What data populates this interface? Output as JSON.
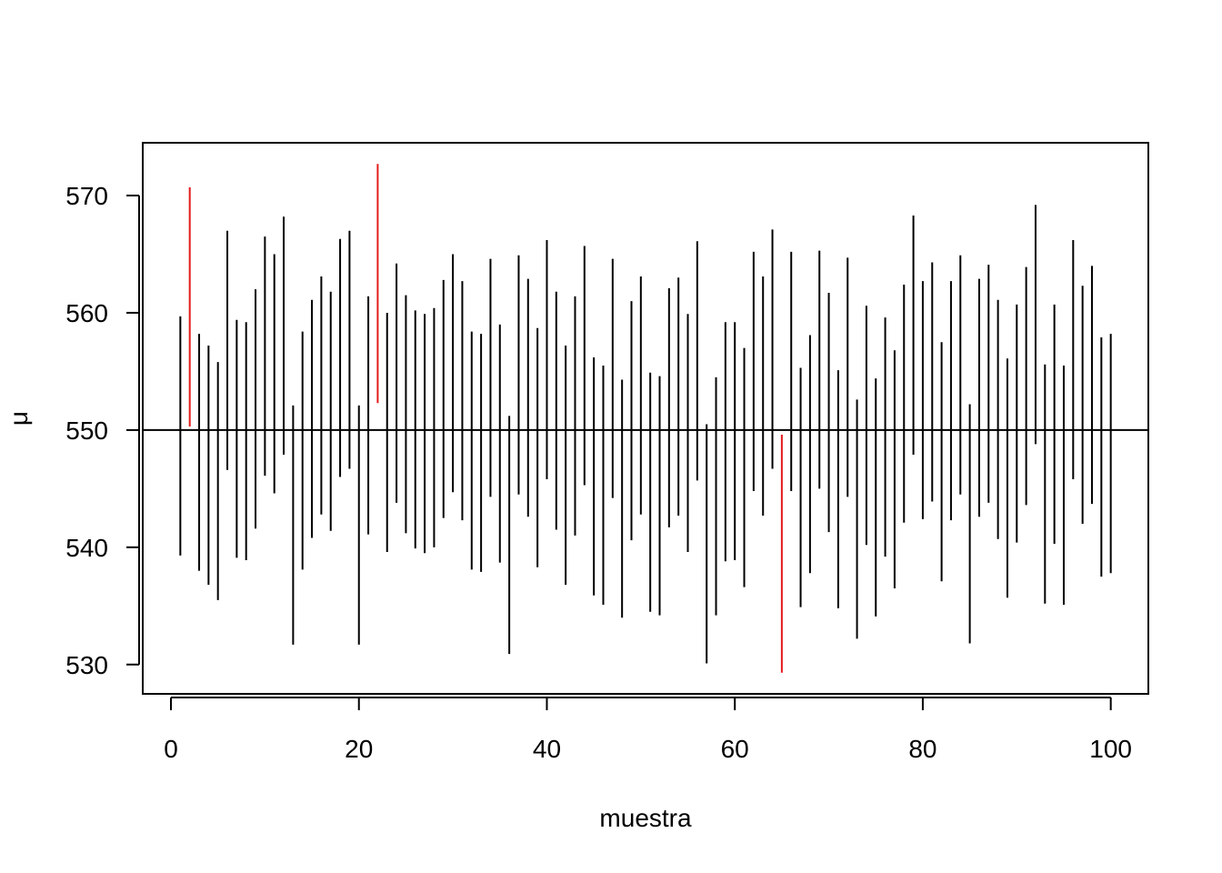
{
  "chart_data": {
    "type": "interval",
    "xlabel": "muestra",
    "ylabel": "μ",
    "xlim": [
      -3.0,
      104.0
    ],
    "ylim": [
      527.5,
      574.5
    ],
    "xticks": [
      "0",
      "20",
      "40",
      "60",
      "80",
      "100"
    ],
    "yticks": [
      "530",
      "540",
      "550",
      "560",
      "570"
    ],
    "reference_line": 550,
    "colors": {
      "covers": "#000000",
      "misses": "#e41a1c",
      "axes": "#000000"
    },
    "grid": false,
    "legend": "none",
    "intervals": [
      [
        1,
        539.3,
        559.7
      ],
      [
        2,
        550.3,
        570.7
      ],
      [
        3,
        538.0,
        558.2
      ],
      [
        4,
        536.8,
        557.2
      ],
      [
        5,
        535.5,
        555.8
      ],
      [
        6,
        546.6,
        567.0
      ],
      [
        7,
        539.1,
        559.4
      ],
      [
        8,
        538.9,
        559.2
      ],
      [
        9,
        541.6,
        562.0
      ],
      [
        10,
        546.1,
        566.5
      ],
      [
        11,
        544.6,
        565.0
      ],
      [
        12,
        547.9,
        568.2
      ],
      [
        13,
        531.7,
        552.1
      ],
      [
        14,
        538.1,
        558.4
      ],
      [
        15,
        540.8,
        561.1
      ],
      [
        16,
        542.8,
        563.1
      ],
      [
        17,
        541.4,
        561.8
      ],
      [
        18,
        546.0,
        566.3
      ],
      [
        19,
        546.7,
        567.0
      ],
      [
        20,
        531.7,
        552.1
      ],
      [
        21,
        541.1,
        561.4
      ],
      [
        22,
        552.3,
        572.7
      ],
      [
        23,
        539.6,
        560.0
      ],
      [
        24,
        543.8,
        564.2
      ],
      [
        25,
        541.2,
        561.5
      ],
      [
        26,
        539.9,
        560.2
      ],
      [
        27,
        539.5,
        559.9
      ],
      [
        28,
        540.0,
        560.4
      ],
      [
        29,
        542.5,
        562.8
      ],
      [
        30,
        544.7,
        565.0
      ],
      [
        31,
        542.3,
        562.7
      ],
      [
        32,
        538.1,
        558.4
      ],
      [
        33,
        537.9,
        558.2
      ],
      [
        34,
        544.3,
        564.6
      ],
      [
        35,
        538.7,
        559.0
      ],
      [
        36,
        530.9,
        551.2
      ],
      [
        37,
        544.5,
        564.9
      ],
      [
        38,
        542.6,
        562.9
      ],
      [
        39,
        538.3,
        558.7
      ],
      [
        40,
        545.8,
        566.2
      ],
      [
        41,
        541.5,
        561.8
      ],
      [
        42,
        536.8,
        557.2
      ],
      [
        43,
        541.0,
        561.4
      ],
      [
        44,
        545.3,
        565.7
      ],
      [
        45,
        535.9,
        556.2
      ],
      [
        46,
        535.1,
        555.5
      ],
      [
        47,
        544.2,
        564.6
      ],
      [
        48,
        534.0,
        554.3
      ],
      [
        49,
        540.6,
        561.0
      ],
      [
        50,
        542.8,
        563.1
      ],
      [
        51,
        534.5,
        554.9
      ],
      [
        52,
        534.2,
        554.6
      ],
      [
        53,
        541.7,
        562.1
      ],
      [
        54,
        542.7,
        563.0
      ],
      [
        55,
        539.6,
        559.9
      ],
      [
        56,
        545.7,
        566.1
      ],
      [
        57,
        530.1,
        550.5
      ],
      [
        58,
        534.2,
        554.5
      ],
      [
        59,
        538.8,
        559.2
      ],
      [
        60,
        538.9,
        559.2
      ],
      [
        61,
        536.6,
        557.0
      ],
      [
        62,
        544.8,
        565.2
      ],
      [
        63,
        542.7,
        563.1
      ],
      [
        64,
        546.7,
        567.1
      ],
      [
        65,
        529.3,
        549.6
      ],
      [
        66,
        544.8,
        565.2
      ],
      [
        67,
        534.9,
        555.3
      ],
      [
        68,
        537.8,
        558.1
      ],
      [
        69,
        545.0,
        565.3
      ],
      [
        70,
        541.3,
        561.7
      ],
      [
        71,
        534.8,
        555.1
      ],
      [
        72,
        544.3,
        564.7
      ],
      [
        73,
        532.2,
        552.6
      ],
      [
        74,
        540.2,
        560.6
      ],
      [
        75,
        534.1,
        554.4
      ],
      [
        76,
        539.2,
        559.6
      ],
      [
        77,
        536.5,
        556.8
      ],
      [
        78,
        542.1,
        562.4
      ],
      [
        79,
        547.9,
        568.3
      ],
      [
        80,
        542.4,
        562.7
      ],
      [
        81,
        543.9,
        564.3
      ],
      [
        82,
        537.1,
        557.5
      ],
      [
        83,
        542.3,
        562.7
      ],
      [
        84,
        544.5,
        564.9
      ],
      [
        85,
        531.8,
        552.2
      ],
      [
        86,
        542.6,
        562.9
      ],
      [
        87,
        543.8,
        564.1
      ],
      [
        88,
        540.7,
        561.1
      ],
      [
        89,
        535.7,
        556.1
      ],
      [
        90,
        540.4,
        560.7
      ],
      [
        91,
        543.6,
        563.9
      ],
      [
        92,
        548.8,
        569.2
      ],
      [
        93,
        535.2,
        555.6
      ],
      [
        94,
        540.3,
        560.7
      ],
      [
        95,
        535.1,
        555.5
      ],
      [
        96,
        545.8,
        566.2
      ],
      [
        97,
        542.0,
        562.3
      ],
      [
        98,
        543.7,
        564.0
      ],
      [
        99,
        537.5,
        557.9
      ],
      [
        100,
        537.8,
        558.2
      ]
    ]
  }
}
